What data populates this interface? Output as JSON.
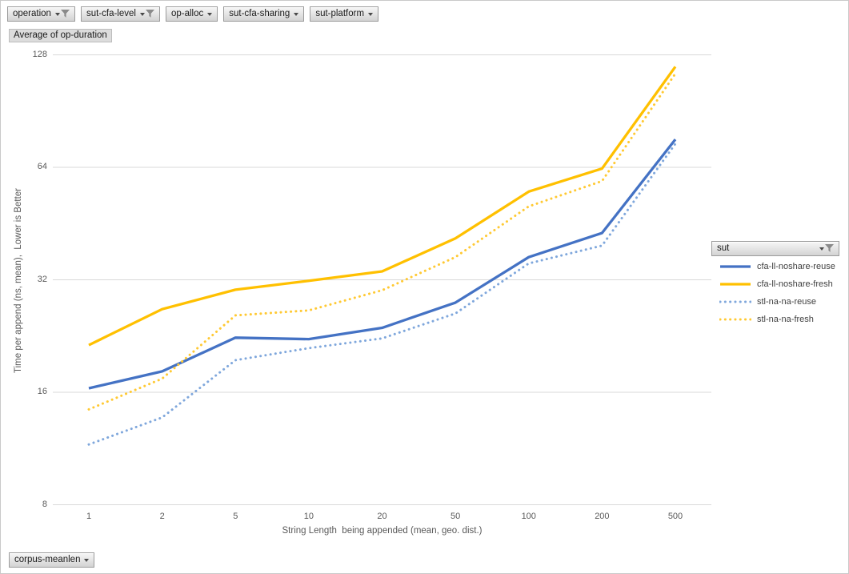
{
  "pivot": {
    "filter_buttons": [
      {
        "label": "operation",
        "filtered": true
      },
      {
        "label": "sut-cfa-level",
        "filtered": true
      },
      {
        "label": "op-alloc",
        "filtered": false
      },
      {
        "label": "sut-cfa-sharing",
        "filtered": false
      },
      {
        "label": "sut-platform",
        "filtered": false
      }
    ],
    "value_button_label": "Average of op-duration",
    "legend_field_button": {
      "label": "sut",
      "filtered": true
    },
    "axis_field_button": {
      "label": "corpus-meanlen",
      "filtered": false
    }
  },
  "chart_data": {
    "type": "line",
    "title": "",
    "xlabel": "String Length  being appended (mean, geo. dist.)",
    "ylabel": "Time per append (ns, mean),  Lower is Better",
    "x_scale": "categorical",
    "y_scale": "log2",
    "ylim": [
      8,
      128
    ],
    "yticks": [
      8,
      16,
      32,
      64,
      128
    ],
    "grid": "horizontal",
    "gridline_color": "#d9d9d9",
    "legend_title": "sut",
    "legend_position": "right",
    "categories": [
      1,
      2,
      5,
      10,
      20,
      50,
      100,
      200,
      500
    ],
    "series": [
      {
        "name": "cfa-ll-noshare-reuse",
        "color": "#4472C4",
        "line_style": "solid",
        "values": [
          16.4,
          18.2,
          22.4,
          22.2,
          23.8,
          27.8,
          36.8,
          42.7,
          76
        ]
      },
      {
        "name": "cfa-ll-noshare-fresh",
        "color": "#FFC000",
        "line_style": "solid",
        "values": [
          21.4,
          26.7,
          30.1,
          31.8,
          33.7,
          41.3,
          55.1,
          63.5,
          119
        ]
      },
      {
        "name": "stl-na-na-reuse",
        "color": "#7FA7DC",
        "line_style": "dotted",
        "values": [
          11.6,
          13.7,
          19.5,
          21.0,
          22.3,
          26.0,
          35.4,
          39.5,
          74
        ]
      },
      {
        "name": "stl-na-na-fresh",
        "color": "#FFC933",
        "line_style": "dotted",
        "values": [
          14.4,
          17.4,
          25.7,
          26.5,
          30.0,
          36.8,
          50.3,
          58.8,
          114
        ]
      }
    ]
  }
}
